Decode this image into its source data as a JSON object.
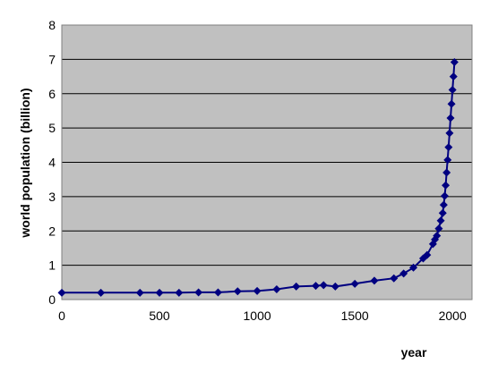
{
  "chart_data": {
    "type": "line",
    "title": "",
    "xlabel": "year",
    "ylabel": "world population (billion)",
    "xlim": [
      0,
      2100
    ],
    "ylim": [
      0,
      8
    ],
    "xticks": [
      0,
      500,
      1000,
      1500,
      2000
    ],
    "yticks": [
      0,
      1,
      2,
      3,
      4,
      5,
      6,
      7,
      8
    ],
    "grid": true,
    "legend": "none",
    "colors": {
      "plot_background": "#c0c0c0",
      "series": "#000080",
      "grid": "#000000"
    },
    "series": [
      {
        "marker": "diamond",
        "x": [
          0,
          200,
          400,
          500,
          600,
          700,
          800,
          900,
          1000,
          1100,
          1200,
          1300,
          1340,
          1400,
          1500,
          1600,
          1700,
          1750,
          1800,
          1850,
          1870,
          1900,
          1910,
          1920,
          1930,
          1940,
          1950,
          1955,
          1960,
          1965,
          1970,
          1975,
          1980,
          1985,
          1990,
          1995,
          2000,
          2005,
          2010
        ],
        "y": [
          0.2,
          0.2,
          0.2,
          0.2,
          0.2,
          0.21,
          0.21,
          0.24,
          0.25,
          0.3,
          0.38,
          0.4,
          0.42,
          0.38,
          0.46,
          0.55,
          0.62,
          0.76,
          0.93,
          1.2,
          1.3,
          1.62,
          1.75,
          1.86,
          2.07,
          2.3,
          2.52,
          2.76,
          3.02,
          3.33,
          3.7,
          4.07,
          4.44,
          4.85,
          5.29,
          5.7,
          6.11,
          6.5,
          6.92
        ]
      }
    ]
  }
}
